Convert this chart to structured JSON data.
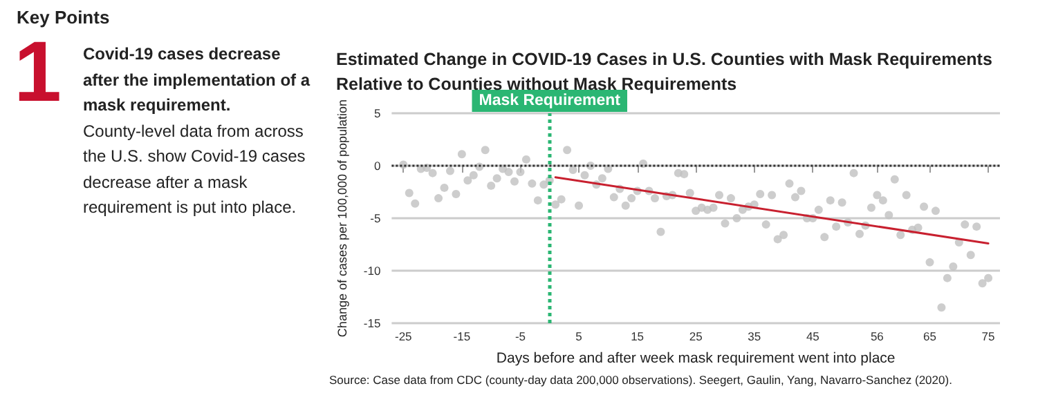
{
  "chart_data": {
    "type": "scatter",
    "title": "Estimated Change in COVID-19 Cases in U.S. Counties with Mask Requirements Relative to Counties without Mask Requirements",
    "xlabel": "Days before and after week mask requirement went into place",
    "ylabel": "Change of cases per 100,000 of population",
    "annotations": [
      "Key Points",
      "1",
      "Covid-19 cases decrease after the implementation of a mask requirement.",
      "County-level data from across the U.S. show Covid-19 cases decrease after a mask requirement is put into place.",
      "Source: Case data from CDC (county-day data 200,000 observations). Seegert, Gaulin, Yang, Navarro-Sanchez (2020)."
    ],
    "xlim": [
      -27,
      77
    ],
    "xticks": [
      -25,
      -15,
      -5,
      5,
      15,
      25,
      35,
      45,
      56,
      65,
      75
    ],
    "ylim": [
      -15,
      5
    ],
    "yticks": [
      -15,
      -10,
      -5,
      0,
      5
    ],
    "grid": "y",
    "series": [
      {
        "marker": "circle",
        "color": "#c0c0c0",
        "x": [
          -25,
          -24,
          -23,
          -22,
          -21,
          -20,
          -19,
          -18,
          -17,
          -16,
          -15,
          -14,
          -13,
          -12,
          -11,
          -10,
          -9,
          -8,
          -7,
          -6,
          -5,
          -4,
          -3,
          -2,
          -1,
          0,
          1,
          2,
          3,
          4,
          5,
          6,
          7,
          8,
          9,
          10,
          11,
          12,
          13,
          14,
          15,
          16,
          17,
          18,
          19,
          20,
          21,
          22,
          23,
          24,
          25,
          26,
          27,
          28,
          29,
          30,
          31,
          32,
          33,
          34,
          35,
          36,
          37,
          38,
          39,
          40,
          41,
          42,
          43,
          44,
          45,
          46,
          47,
          48,
          49,
          50,
          51,
          52,
          53,
          54,
          55,
          56,
          57,
          58,
          59,
          60,
          61,
          62,
          63,
          64,
          65,
          66,
          67,
          68,
          69,
          70,
          71,
          72,
          73,
          74,
          75
        ],
        "values": [
          0.1,
          -2.6,
          -3.6,
          -0.3,
          -0.2,
          -0.7,
          -3.1,
          -2.1,
          -0.5,
          -2.7,
          1.1,
          -1.4,
          -0.9,
          -0.1,
          1.5,
          -1.9,
          -1.2,
          -0.3,
          -0.6,
          -1.5,
          -0.6,
          0.6,
          -1.7,
          -3.3,
          -1.8,
          -1.4,
          -3.7,
          -3.2,
          1.5,
          -0.4,
          -3.8,
          -0.9,
          0.0,
          -1.8,
          -1.2,
          -0.3,
          -3.0,
          -2.2,
          -3.8,
          -3.1,
          -2.4,
          0.2,
          -2.4,
          -3.1,
          -6.3,
          -2.9,
          -2.8,
          -0.7,
          -0.8,
          -2.6,
          -4.3,
          -4.0,
          -4.2,
          -4.0,
          -2.8,
          -5.5,
          -3.1,
          -5.0,
          -4.2,
          -3.9,
          -3.7,
          -2.7,
          -5.6,
          -2.8,
          -7.0,
          -6.6,
          -1.7,
          -3.0,
          -2.4,
          -5.0,
          -5.0,
          -4.2,
          -6.8,
          -3.3,
          -5.8,
          -3.5,
          -5.4,
          -0.7,
          -6.5,
          -5.7,
          -4.0,
          -2.8,
          -3.3,
          -4.7,
          -1.3,
          -6.6,
          -2.8,
          -6.1,
          -5.9,
          -3.9,
          -9.2,
          -4.3,
          -13.5,
          -10.7,
          -9.6,
          -7.3,
          -5.6,
          -8.5,
          -5.8,
          -11.2,
          -10.7
        ]
      },
      {
        "type": "line",
        "color": "#c8202f",
        "x": [
          1,
          75
        ],
        "values": [
          -1.1,
          -7.4
        ]
      }
    ],
    "ref_lines": [
      {
        "axis": "x",
        "value": 0,
        "label": "Mask Requirement",
        "color": "#2bb673",
        "line_style": "dotted"
      },
      {
        "axis": "y",
        "value": 0,
        "color": "#333333",
        "line_style": "dotted"
      }
    ]
  }
}
